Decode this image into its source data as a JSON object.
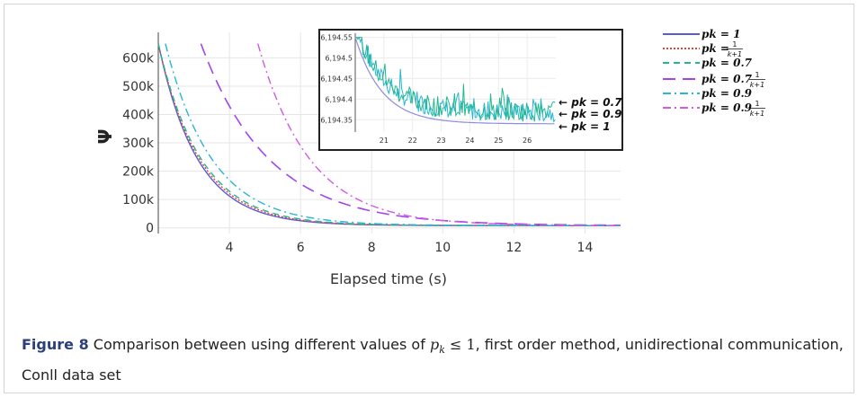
{
  "figure": {
    "caption_label": "Figure 8",
    "caption_pre": "Comparison between using different values of ",
    "caption_math_var": "p",
    "caption_math_sub": "k",
    "caption_math_rel": " ≤ 1",
    "caption_post": ", first order method, unidirectional communication, Conll data set"
  },
  "chart_data": {
    "type": "line",
    "xlabel": "Elapsed time (s)",
    "ylabel": "Ψ",
    "xlim": [
      2.0,
      15.0
    ],
    "ylim": [
      -20000,
      690000
    ],
    "x_ticks": [
      4,
      6,
      8,
      10,
      12,
      14
    ],
    "y_ticks": [
      0,
      100000,
      200000,
      300000,
      400000,
      500000,
      600000
    ],
    "y_tick_labels": [
      "0",
      "100k",
      "200k",
      "300k",
      "400k",
      "500k",
      "600k"
    ],
    "grid": true,
    "legend_position": "right",
    "series": [
      {
        "name": "pk = 1",
        "color": "#5b5bd6",
        "dash": "solid",
        "start": 2.0,
        "y0": 650000,
        "tau": 1.1
      },
      {
        "name": "pk = 1/(k+1)",
        "color": "#e0403a",
        "dash": "dotted",
        "start": 2.0,
        "y0": 650000,
        "tau": 1.15
      },
      {
        "name": "pk = 0.7",
        "color": "#22b88f",
        "dash": "dashed",
        "start": 2.0,
        "y0": 650000,
        "tau": 1.2
      },
      {
        "name": "pk = 0.7 1/(k+1)",
        "color": "#a245e8",
        "dash": "longdash",
        "start": 3.2,
        "y0": 650000,
        "tau": 1.9
      },
      {
        "name": "pk = 0.9",
        "color": "#27b6d6",
        "dash": "dashdot",
        "start": 2.2,
        "y0": 650000,
        "tau": 1.3
      },
      {
        "name": "pk = 0.9 1/(k+1)",
        "color": "#d05ae0",
        "dash": "dashdot",
        "start": 4.8,
        "y0": 650000,
        "tau": 1.45
      }
    ],
    "legend": [
      {
        "main": "pk = 1"
      },
      {
        "main": "pk = ",
        "frac_num": "1",
        "frac_den": "k+1"
      },
      {
        "main": "pk = 0.7"
      },
      {
        "main": "pk = 0.7 ",
        "frac_num": "1",
        "frac_den": "k+1"
      },
      {
        "main": "pk = 0.9"
      },
      {
        "main": "pk = 0.9 ",
        "frac_num": "1",
        "frac_den": "k+1"
      }
    ],
    "inset": {
      "xlim": [
        20.0,
        27.0
      ],
      "ylim": [
        6194.32,
        6194.56
      ],
      "x_ticks": [
        21,
        22,
        23,
        24,
        25,
        26
      ],
      "y_ticks": [
        6194.35,
        6194.4,
        6194.45,
        6194.5,
        6194.55
      ],
      "y_tick_labels": [
        "6,194.35",
        "6,194.4",
        "6,194.45",
        "6,194.5",
        "6,194.55"
      ],
      "annotations": [
        "← pk = 0.7",
        "← pk = 0.9",
        "← pk = 1"
      ],
      "floor": 6194.34
    }
  }
}
